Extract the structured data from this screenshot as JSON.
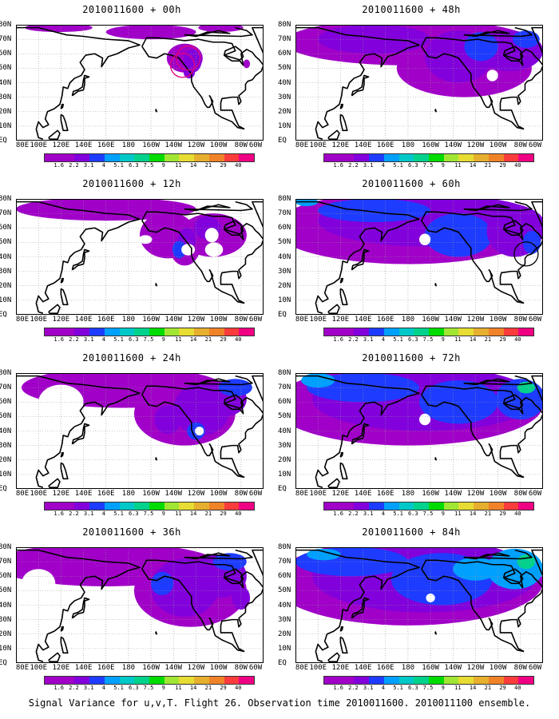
{
  "caption": "Signal Variance for u,v,T. Flight 26. Observation time 2010011600. 2010011100 ensemble.",
  "lat_labels": [
    "80N",
    "70N",
    "60N",
    "50N",
    "40N",
    "30N",
    "20N",
    "10N",
    "EQ"
  ],
  "lon_labels": [
    "80E",
    "100E",
    "120E",
    "140E",
    "160E",
    "180",
    "160W",
    "140W",
    "120W",
    "100W",
    "80W",
    "60W"
  ],
  "legend": {
    "labels": [
      "1.6",
      "2.2",
      "3.1",
      "4",
      "5.1",
      "6.3",
      "7.5",
      "9",
      "11",
      "14",
      "21",
      "29",
      "40"
    ],
    "colors": [
      "#a000c8",
      "#8200dc",
      "#1e3cff",
      "#00a0ff",
      "#00c8c8",
      "#00d28c",
      "#00dc00",
      "#a0e632",
      "#e6dc32",
      "#e6af2d",
      "#f08228",
      "#fa3c3c",
      "#f00082"
    ]
  },
  "panels": [
    {
      "title": "2010011600 + 00h",
      "id": "00h"
    },
    {
      "title": "2010011600 + 48h",
      "id": "48h"
    },
    {
      "title": "2010011600 + 12h",
      "id": "12h"
    },
    {
      "title": "2010011600 + 60h",
      "id": "60h"
    },
    {
      "title": "2010011600 + 24h",
      "id": "24h"
    },
    {
      "title": "2010011600 + 72h",
      "id": "72h"
    },
    {
      "title": "2010011600 + 36h",
      "id": "36h"
    },
    {
      "title": "2010011600 + 84h",
      "id": "84h"
    }
  ]
}
